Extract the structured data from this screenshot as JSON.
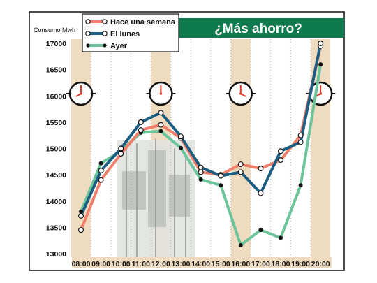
{
  "chart_data": {
    "type": "line",
    "title": "¿Más ahorro?",
    "ylabel": "Consumo Mwh",
    "xlabel": "",
    "ylim": [
      13000,
      17000
    ],
    "yticks": [
      13000,
      13500,
      14000,
      14500,
      15000,
      15500,
      16000,
      16500,
      17000
    ],
    "categories": [
      "08:00",
      "09:00",
      "10:00",
      "11:00",
      "12:00",
      "13:00",
      "14:00",
      "15:00",
      "16:00",
      "17:00",
      "18:00",
      "19:00",
      "20:00"
    ],
    "legend_position": "top-left",
    "grid": "vertical dotted",
    "series": [
      {
        "name": "Hace una semana",
        "color": "#f07f6b",
        "marker": "hollow-circle",
        "values": [
          13450,
          14400,
          14900,
          15350,
          15450,
          15200,
          14550,
          14500,
          14700,
          14620,
          14780,
          15250,
          16950
        ]
      },
      {
        "name": "El lunes",
        "color": "#1b5e82",
        "marker": "hollow-circle",
        "values": [
          13720,
          14580,
          15000,
          15500,
          15680,
          15230,
          14640,
          14480,
          14550,
          14150,
          14950,
          15120,
          17000
        ]
      },
      {
        "name": "Ayer",
        "color": "#6cc49a",
        "marker": "filled-dot",
        "values": [
          13800,
          14720,
          14950,
          15300,
          15330,
          15010,
          14410,
          14300,
          13160,
          13450,
          13300,
          14300,
          16600
        ]
      }
    ],
    "highlight_hours": [
      "08:00",
      "12:00",
      "16:00",
      "20:00"
    ],
    "clock_icons": [
      "clock-8",
      "clock-12",
      "clock-4",
      "clock-8"
    ],
    "colors": {
      "title_bg": "#0f7a4e",
      "shade": "#efdcc0",
      "axis_band": "#efdcc0"
    }
  }
}
